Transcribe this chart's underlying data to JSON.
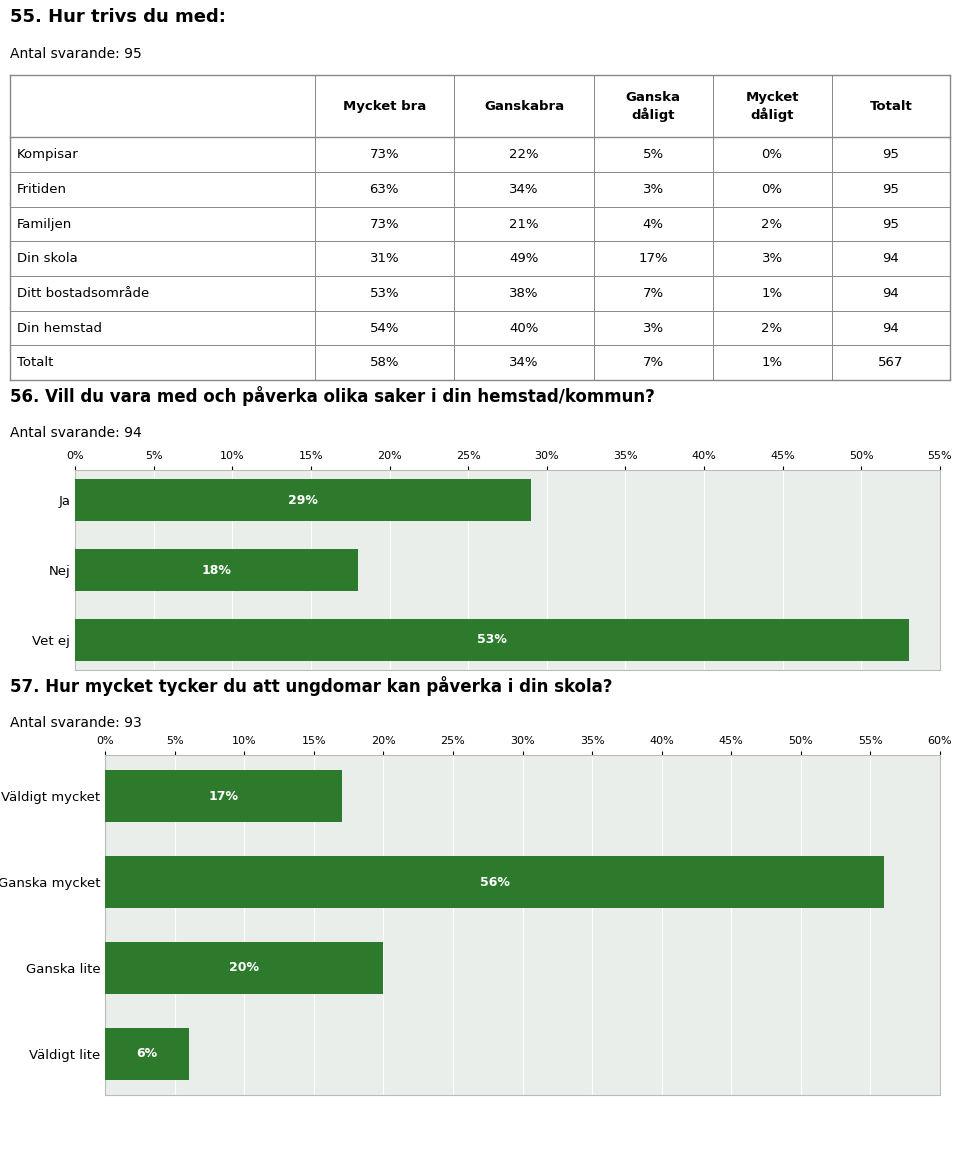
{
  "title55": "55. Hur trivs du med:",
  "subtitle55": "Antal svarande: 95",
  "table_headers": [
    "",
    "Mycket bra",
    "Ganskabra",
    "Ganska\ndåligt",
    "Mycket\ndåligt",
    "Totalt"
  ],
  "table_rows": [
    [
      "Kompisar",
      "73%",
      "22%",
      "5%",
      "0%",
      "95"
    ],
    [
      "Fritiden",
      "63%",
      "34%",
      "3%",
      "0%",
      "95"
    ],
    [
      "Familjen",
      "73%",
      "21%",
      "4%",
      "2%",
      "95"
    ],
    [
      "Din skola",
      "31%",
      "49%",
      "17%",
      "3%",
      "94"
    ],
    [
      "Ditt bostadsområde",
      "53%",
      "38%",
      "7%",
      "1%",
      "94"
    ],
    [
      "Din hemstad",
      "54%",
      "40%",
      "3%",
      "2%",
      "94"
    ],
    [
      "Totalt",
      "58%",
      "34%",
      "7%",
      "1%",
      "567"
    ]
  ],
  "title56": "56. Vill du vara med och påverka olika saker i din hemstad/kommun?",
  "subtitle56": "Antal svarande: 94",
  "chart56_categories": [
    "Ja",
    "Nej",
    "Vet ej"
  ],
  "chart56_values": [
    29,
    18,
    53
  ],
  "chart56_xlim": [
    0,
    55
  ],
  "chart56_xticks": [
    0,
    5,
    10,
    15,
    20,
    25,
    30,
    35,
    40,
    45,
    50,
    55
  ],
  "title57": "57. Hur mycket tycker du att ungdomar kan påverka i din skola?",
  "subtitle57": "Antal svarande: 93",
  "chart57_categories": [
    "Väldigt mycket",
    "Ganska mycket",
    "Ganska lite",
    "Väldigt lite"
  ],
  "chart57_values": [
    17,
    56,
    20,
    6
  ],
  "chart57_xlim": [
    0,
    60
  ],
  "chart57_xticks": [
    0,
    5,
    10,
    15,
    20,
    25,
    30,
    35,
    40,
    45,
    50,
    55,
    60
  ],
  "bar_color": "#2d7a2d",
  "bar_bg_color": "#eaeeea",
  "text_color": "#000000",
  "grid_color": "#bbbbbb",
  "table_border_color": "#888888"
}
